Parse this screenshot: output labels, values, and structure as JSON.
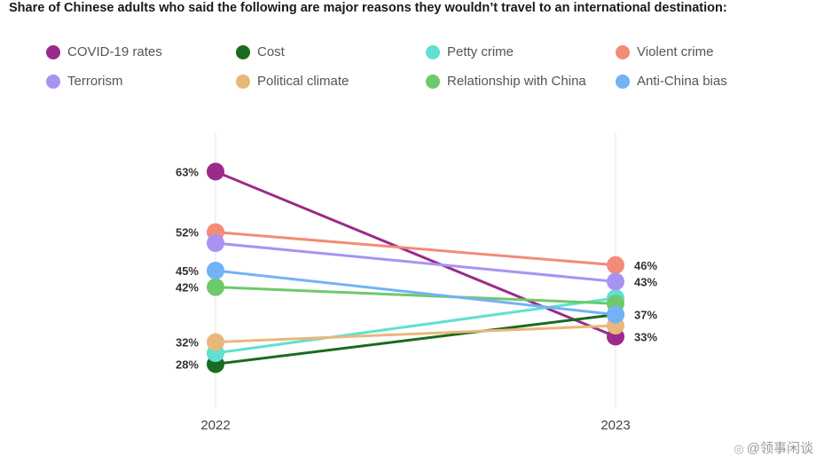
{
  "chart_data": {
    "type": "line",
    "title": "Share of Chinese adults who said the following are major reasons they wouldn’t travel to an international destination:",
    "x": [
      "2022",
      "2023"
    ],
    "xlabel": "",
    "ylabel": "",
    "ylim": [
      20,
      70
    ],
    "grid": false,
    "legend_position": "top",
    "series": [
      {
        "name": "COVID-19 rates",
        "color": "#9b2a8a",
        "values": [
          63,
          33
        ],
        "labels": [
          "63%",
          "33%"
        ]
      },
      {
        "name": "Cost",
        "color": "#1a6b1f",
        "values": [
          28,
          37
        ],
        "labels": [
          "28%",
          ""
        ]
      },
      {
        "name": "Petty crime",
        "color": "#5fe0d2",
        "values": [
          30,
          40
        ],
        "labels": [
          "",
          ""
        ]
      },
      {
        "name": "Violent crime",
        "color": "#f48b78",
        "values": [
          52,
          46
        ],
        "labels": [
          "52%",
          "46%"
        ]
      },
      {
        "name": "Terrorism",
        "color": "#a893f2",
        "values": [
          50,
          43
        ],
        "labels": [
          "",
          "43%"
        ]
      },
      {
        "name": "Political climate",
        "color": "#e8b87a",
        "values": [
          32,
          35
        ],
        "labels": [
          "32%",
          ""
        ]
      },
      {
        "name": "Relationship with China",
        "color": "#6ec96a",
        "values": [
          42,
          39
        ],
        "labels": [
          "42%",
          ""
        ]
      },
      {
        "name": "Anti-China bias",
        "color": "#72b2f7",
        "values": [
          45,
          37
        ],
        "labels": [
          "45%",
          "37%"
        ]
      }
    ]
  },
  "watermark": {
    "text": "@领事闲谈"
  }
}
